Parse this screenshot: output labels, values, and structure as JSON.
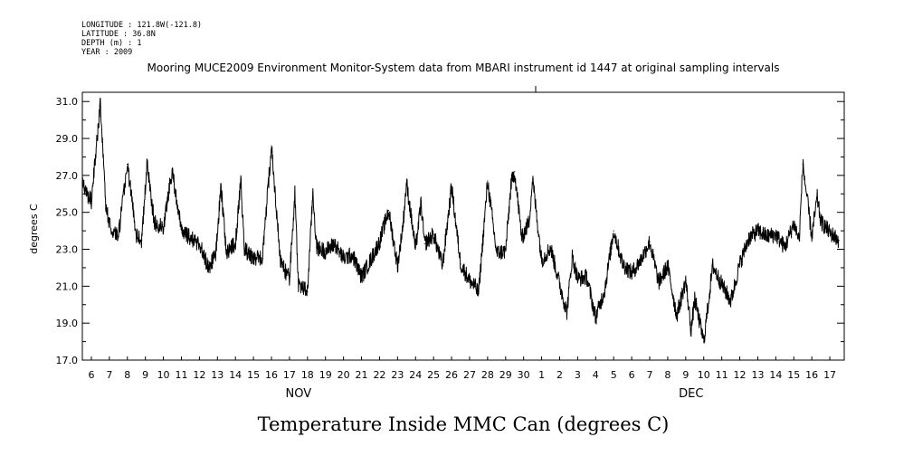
{
  "header": {
    "meta_lines": [
      "LONGITUDE : 121.8W(-121.8)",
      "LATITUDE : 36.8N",
      "DEPTH (m) : 1",
      "YEAR : 2009"
    ],
    "title": "Mooring MUCE2009 Environment Monitor-System data from MBARI instrument id 1447 at original sampling intervals"
  },
  "caption": "Temperature Inside MMC Can (degrees C)",
  "chart_data": {
    "type": "line",
    "title": "Mooring MUCE2009 Environment Monitor-System data from MBARI instrument id 1447 at original sampling intervals",
    "xlabel": "",
    "ylabel": "degrees C",
    "xlim": [
      0,
      42.3
    ],
    "ylim": [
      17,
      31.5
    ],
    "yticks": [
      17,
      19,
      21,
      23,
      25,
      27,
      29,
      31
    ],
    "ytick_labels": [
      "17.0",
      "19.0",
      "21.0",
      "23.0",
      "25.0",
      "27.0",
      "29.0",
      "31.0"
    ],
    "xtick_labels": [
      "6",
      "7",
      "8",
      "9",
      "10",
      "11",
      "12",
      "13",
      "14",
      "15",
      "16",
      "17",
      "18",
      "19",
      "20",
      "21",
      "22",
      "23",
      "24",
      "25",
      "26",
      "27",
      "28",
      "29",
      "30",
      "1",
      "2",
      "3",
      "4",
      "5",
      "6",
      "7",
      "8",
      "9",
      "10",
      "11",
      "12",
      "13",
      "14",
      "15",
      "16",
      "17"
    ],
    "xtick_positions": [
      0.5,
      1.5,
      2.5,
      3.5,
      4.5,
      5.5,
      6.5,
      7.5,
      8.5,
      9.5,
      10.5,
      11.5,
      12.5,
      13.5,
      14.5,
      15.5,
      16.5,
      17.5,
      18.5,
      19.5,
      20.5,
      21.5,
      22.5,
      23.5,
      24.5,
      25.5,
      26.5,
      27.5,
      28.5,
      29.5,
      30.5,
      31.5,
      32.5,
      33.5,
      34.5,
      35.5,
      36.5,
      37.5,
      38.5,
      39.5,
      40.5,
      41.5
    ],
    "month_labels": [
      {
        "label": "NOV",
        "x": 12.0
      },
      {
        "label": "DEC",
        "x": 33.8
      }
    ],
    "series": [
      {
        "name": "Temperature Inside MMC Can",
        "x": [
          0.0,
          0.5,
          1.0,
          1.3,
          1.6,
          2.0,
          2.5,
          3.0,
          3.3,
          3.6,
          4.0,
          4.5,
          5.0,
          5.3,
          5.6,
          6.0,
          6.5,
          7.0,
          7.4,
          7.7,
          8.0,
          8.5,
          8.8,
          9.0,
          9.5,
          10.0,
          10.5,
          11.0,
          11.5,
          11.8,
          12.0,
          12.5,
          12.8,
          13.0,
          13.5,
          14.0,
          14.5,
          15.0,
          15.5,
          16.0,
          16.5,
          17.0,
          17.5,
          17.8,
          18.0,
          18.5,
          18.8,
          19.0,
          19.5,
          20.0,
          20.5,
          21.0,
          21.5,
          21.8,
          22.0,
          22.5,
          23.0,
          23.5,
          23.8,
          24.0,
          24.4,
          24.8,
          25.0,
          25.5,
          26.0,
          26.5,
          26.9,
          27.2,
          27.5,
          28.0,
          28.5,
          29.0,
          29.5,
          30.0,
          30.5,
          31.0,
          31.5,
          32.0,
          32.5,
          33.0,
          33.5,
          33.8,
          34.0,
          34.5,
          35.0,
          35.5,
          36.0,
          36.5,
          37.0,
          37.5,
          38.0,
          38.5,
          39.0,
          39.5,
          39.8,
          40.0,
          40.5,
          40.8,
          41.0,
          41.5,
          42.0
        ],
        "values": [
          26.5,
          25.6,
          30.9,
          25.2,
          24.1,
          23.7,
          27.6,
          23.8,
          23.5,
          27.7,
          24.4,
          24.2,
          27.4,
          25.0,
          23.9,
          23.6,
          23.3,
          22.0,
          22.7,
          26.4,
          22.8,
          23.3,
          26.7,
          23.0,
          22.5,
          22.5,
          28.6,
          22.3,
          21.4,
          26.0,
          21.1,
          20.7,
          26.1,
          23.1,
          22.9,
          23.3,
          22.5,
          22.7,
          21.5,
          22.4,
          23.4,
          25.1,
          22.1,
          24.3,
          26.6,
          23.0,
          25.5,
          23.3,
          23.8,
          22.1,
          26.4,
          22.2,
          21.3,
          21.0,
          20.6,
          26.7,
          22.8,
          22.9,
          26.5,
          27.2,
          23.6,
          24.5,
          26.8,
          22.4,
          23.1,
          21.1,
          19.6,
          22.6,
          21.4,
          21.5,
          19.3,
          20.8,
          24.0,
          22.2,
          21.7,
          22.4,
          23.4,
          21.2,
          22.1,
          19.4,
          21.3,
          18.6,
          20.3,
          18.0,
          22.1,
          21.1,
          20.2,
          22.2,
          23.6,
          24.0,
          23.7,
          23.8,
          23.1,
          24.4,
          23.5,
          27.6,
          23.7,
          25.8,
          24.5,
          23.9,
          23.5
        ]
      }
    ]
  }
}
